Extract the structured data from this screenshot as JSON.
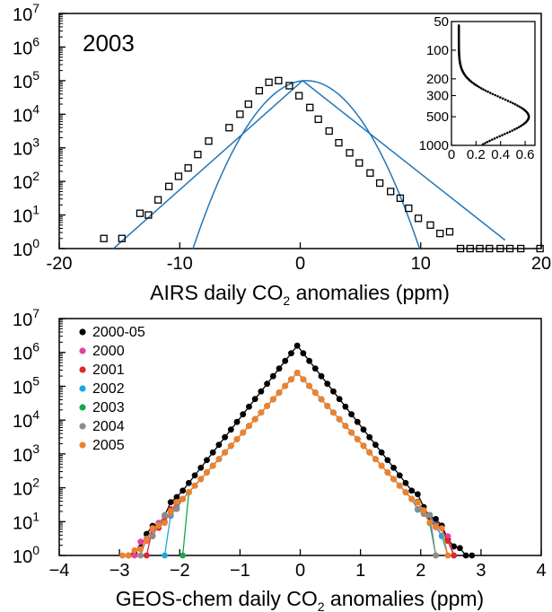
{
  "chart_data": [
    {
      "type": "scatter",
      "panel": "top",
      "annotation": "2003",
      "xlabel_parts": [
        "AIRS daily CO",
        "2",
        " anomalies (ppm)"
      ],
      "xlim": [
        -20,
        20
      ],
      "ylim": [
        0,
        7
      ],
      "yscale": "log10",
      "xticks": [
        "-20",
        "-10",
        "0",
        "10",
        "20"
      ],
      "yticks_base": "10",
      "yticks_exp": [
        "0",
        "1",
        "2",
        "3",
        "4",
        "5",
        "6",
        "7"
      ],
      "series": [
        {
          "marker": "open-square",
          "color": "#000000",
          "x": [
            -16.3,
            -14.8,
            -13.3,
            -12.6,
            -11.8,
            -10.9,
            -10.1,
            -9.3,
            -8.5,
            -7.6,
            -5.9,
            -5.0,
            -4.3,
            -3.4,
            -2.6,
            -1.8,
            -0.9,
            -0.1,
            0.8,
            1.5,
            2.4,
            3.2,
            4.1,
            4.9,
            5.8,
            6.6,
            7.5,
            8.3,
            9.0,
            9.8,
            10.8,
            11.6,
            12.4,
            13.3,
            14.1,
            14.9,
            15.7,
            16.6,
            17.4,
            18.3,
            19.9
          ],
          "log10_y": [
            0.3,
            0.3,
            1.05,
            1.0,
            1.45,
            1.85,
            2.15,
            2.4,
            2.8,
            3.2,
            3.6,
            4.0,
            4.3,
            4.7,
            4.95,
            5.0,
            4.85,
            4.55,
            4.2,
            3.85,
            3.5,
            3.15,
            2.85,
            2.55,
            2.25,
            1.95,
            1.7,
            1.5,
            1.2,
            0.9,
            0.7,
            0.45,
            0.5,
            0.0,
            0.0,
            0.0,
            0.0,
            0.0,
            0.0,
            0.0,
            0.0
          ]
        },
        {
          "type": "line",
          "name_hidden": "fit-linear",
          "color": "#2176b8",
          "x": [
            -15.5,
            0.2,
            17.0
          ],
          "log10_y": [
            0.0,
            5.0,
            0.25
          ]
        },
        {
          "type": "line",
          "name_hidden": "fit-gaussian",
          "color": "#2176b8",
          "center": 0.5,
          "log10_peak": 5.0,
          "log10_at_edges": 0.0,
          "half_width": 9.4
        }
      ],
      "inset": {
        "type": "line",
        "xticks": [
          "0",
          "0.2",
          "0.4",
          "0.6"
        ],
        "yticks": [
          "50",
          "100",
          "200",
          "300",
          "500",
          "1000"
        ],
        "xlim": [
          0,
          0.68
        ],
        "ylim": [
          50,
          1000
        ],
        "yscale": "log-inverted",
        "profile": {
          "p_peak": 500,
          "x_peak": 0.63,
          "x_base": 0.06
        }
      }
    },
    {
      "type": "line",
      "panel": "bottom",
      "xlabel_parts": [
        "GEOS-chem daily CO",
        "2",
        " anomalies (ppm)"
      ],
      "xlim": [
        -4,
        4
      ],
      "ylim": [
        0,
        7
      ],
      "yscale": "log10",
      "xticks": [
        "−4",
        "−3",
        "−2",
        "−1",
        "0",
        "1",
        "2",
        "3",
        "4"
      ],
      "yticks_base": "10",
      "yticks_exp": [
        "0",
        "1",
        "2",
        "3",
        "4",
        "5",
        "6",
        "7"
      ],
      "legend_position": "top-left",
      "series": [
        {
          "name": "2000-05",
          "color": "#000000",
          "peak_x": -0.05,
          "log10_peak": 6.2,
          "left_end": -2.85,
          "right_end": 2.88,
          "step": 0.1
        },
        {
          "name": "2000",
          "color": "#e83f9a",
          "peak_x": -0.05,
          "log10_peak": 5.4,
          "left_end": -2.75,
          "right_end": 2.55,
          "step": 0.1
        },
        {
          "name": "2001",
          "color": "#d9282e",
          "peak_x": -0.05,
          "log10_peak": 5.4,
          "left_end": -2.6,
          "right_end": 2.6,
          "step": 0.1
        },
        {
          "name": "2002",
          "color": "#1aa8e0",
          "peak_x": -0.05,
          "log10_peak": 5.4,
          "left_end": -2.3,
          "right_end": 2.45,
          "step": 0.1
        },
        {
          "name": "2003",
          "color": "#15a84a",
          "peak_x": -0.05,
          "log10_peak": 5.4,
          "left_end": -2.0,
          "right_end": 2.3,
          "step": 0.1
        },
        {
          "name": "2004",
          "color": "#8c8c8c",
          "peak_x": -0.05,
          "log10_peak": 5.4,
          "left_end": -2.65,
          "right_end": 2.3,
          "step": 0.1
        },
        {
          "name": "2005",
          "color": "#f0812b",
          "peak_x": -0.05,
          "log10_peak": 5.4,
          "left_end": -3.0,
          "right_end": 2.5,
          "step": 0.1
        }
      ]
    }
  ]
}
